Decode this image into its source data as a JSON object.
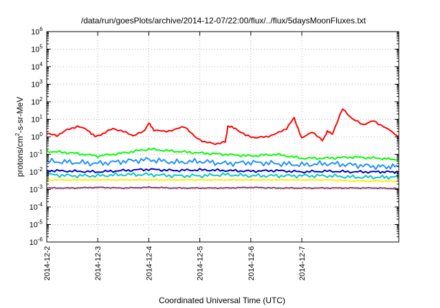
{
  "chart_data": {
    "type": "line",
    "title": "/data/run/goesPlots/archive/2014-12-07/22:00/flux/../flux/5daysMoonFluxes.txt",
    "xlabel": "Coordinated Universal Time (UTC)",
    "ylabel_parts": [
      "protons/cm",
      "2",
      "-s-sr-MeV"
    ],
    "yscale": "log",
    "ylim": [
      1e-06,
      1000000.0
    ],
    "xlim_days": [
      0,
      6.9
    ],
    "grid": true,
    "x_ticks": [
      {
        "day": 0,
        "label": "2014-12-2"
      },
      {
        "day": 1,
        "label": "2014-12-3"
      },
      {
        "day": 2,
        "label": "2014-12-4"
      },
      {
        "day": 3,
        "label": "2014-12-5"
      },
      {
        "day": 4,
        "label": "2014-12-6"
      },
      {
        "day": 5,
        "label": "2014-12-7"
      }
    ],
    "y_ticks": [
      {
        "exp": 6,
        "base": "10",
        "sup": "6"
      },
      {
        "exp": 5,
        "base": "10",
        "sup": "5"
      },
      {
        "exp": 4,
        "base": "10",
        "sup": "4"
      },
      {
        "exp": 3,
        "base": "10",
        "sup": "3"
      },
      {
        "exp": 2,
        "base": "10",
        "sup": "2"
      },
      {
        "exp": 1,
        "base": "10",
        "sup": "1"
      },
      {
        "exp": 0,
        "base": "10",
        "sup": "0"
      },
      {
        "exp": -1,
        "base": "10",
        "sup": "-1"
      },
      {
        "exp": -2,
        "base": "10",
        "sup": "-2"
      },
      {
        "exp": -3,
        "base": "10",
        "sup": "-3"
      },
      {
        "exp": -4,
        "base": "10",
        "sup": "-4"
      },
      {
        "exp": -5,
        "base": "10",
        "sup": "-5"
      },
      {
        "exp": -6,
        "base": "10",
        "sup": "-6"
      }
    ],
    "series": [
      {
        "color": "#ff0000",
        "x": [
          0,
          0.2,
          0.4,
          0.6,
          0.8,
          0.95,
          1.1,
          1.3,
          1.5,
          1.7,
          1.9,
          2.0,
          2.1,
          2.3,
          2.5,
          2.7,
          2.9,
          3.1,
          3.3,
          3.5,
          3.55,
          3.7,
          3.9,
          4.1,
          4.3,
          4.5,
          4.7,
          4.85,
          5.0,
          5.2,
          5.4,
          5.5,
          5.6,
          5.8,
          6.0,
          6.2,
          6.4,
          6.6,
          6.9
        ],
        "y": [
          1.5,
          1.2,
          2.5,
          4.0,
          2.5,
          1.0,
          1.5,
          3.0,
          2.0,
          1.2,
          2.0,
          6.0,
          2.5,
          2.0,
          2.5,
          4.0,
          1.0,
          0.5,
          0.4,
          0.5,
          4.0,
          3.0,
          1.2,
          0.9,
          1.0,
          1.5,
          3.0,
          12.0,
          0.8,
          2.0,
          0.6,
          2.0,
          1.5,
          40.0,
          10.0,
          5.0,
          8.0,
          4.0,
          1.0
        ]
      },
      {
        "color": "#00ff00",
        "x": [
          0,
          0.5,
          1.0,
          1.5,
          2.0,
          2.5,
          3.0,
          3.5,
          4.0,
          4.5,
          5.0,
          5.5,
          6.0,
          6.5,
          6.9
        ],
        "y": [
          0.15,
          0.12,
          0.08,
          0.12,
          0.2,
          0.15,
          0.12,
          0.1,
          0.08,
          0.1,
          0.06,
          0.06,
          0.07,
          0.06,
          0.05
        ]
      },
      {
        "color": "#1e90ff",
        "x": [
          0,
          0.5,
          1.0,
          1.5,
          2.0,
          2.5,
          3.0,
          3.5,
          4.0,
          4.5,
          5.0,
          5.5,
          6.0,
          6.5,
          6.9
        ],
        "y": [
          0.04,
          0.035,
          0.03,
          0.04,
          0.05,
          0.035,
          0.04,
          0.03,
          0.035,
          0.03,
          0.025,
          0.03,
          0.025,
          0.02,
          0.02
        ]
      },
      {
        "color": "#0000cc",
        "x": [
          0,
          0.5,
          1.0,
          1.5,
          2.0,
          2.5,
          3.0,
          3.5,
          4.0,
          4.5,
          5.0,
          5.5,
          6.0,
          6.5,
          6.9
        ],
        "y": [
          0.012,
          0.011,
          0.01,
          0.012,
          0.014,
          0.012,
          0.013,
          0.012,
          0.011,
          0.012,
          0.01,
          0.011,
          0.01,
          0.01,
          0.01
        ]
      },
      {
        "color": "#00c8c8",
        "x": [
          0,
          0.5,
          1.0,
          1.5,
          2.0,
          2.5,
          3.0,
          3.5,
          4.0,
          4.5,
          5.0,
          5.5,
          6.0,
          6.5,
          6.9
        ],
        "y": [
          0.007,
          0.006,
          0.006,
          0.007,
          0.007,
          0.006,
          0.006,
          0.007,
          0.006,
          0.006,
          0.006,
          0.006,
          0.005,
          0.005,
          0.005
        ]
      },
      {
        "color": "#ffee00",
        "x": [
          0,
          0.5,
          1.0,
          1.5,
          2.0,
          2.5,
          3.0,
          3.5,
          4.0,
          4.5,
          5.0,
          5.5,
          6.0,
          6.5,
          6.9
        ],
        "y": [
          0.0035,
          0.0035,
          0.0035,
          0.0035,
          0.0035,
          0.0035,
          0.0035,
          0.0035,
          0.0035,
          0.0035,
          0.0035,
          0.0035,
          0.003,
          0.003,
          0.003
        ]
      },
      {
        "color": "#8b3a62",
        "x": [
          0,
          0.5,
          1.0,
          1.5,
          2.0,
          2.5,
          3.0,
          3.5,
          4.0,
          4.5,
          5.0,
          5.5,
          6.0,
          6.5,
          6.9
        ],
        "y": [
          0.0012,
          0.0012,
          0.0013,
          0.0012,
          0.0013,
          0.0012,
          0.0012,
          0.0012,
          0.0013,
          0.0012,
          0.0012,
          0.0012,
          0.0012,
          0.0012,
          0.0011
        ]
      }
    ]
  }
}
